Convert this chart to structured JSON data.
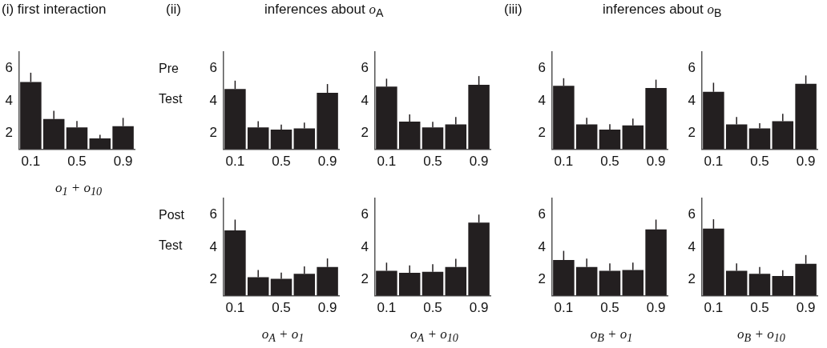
{
  "chart_data": [
    {
      "type": "bar",
      "title": "(i) first interaction",
      "xlabel": "o$_{1}$ + o$_{10}$",
      "categories": [
        "0.1",
        null,
        "0.5",
        null,
        "0.9"
      ],
      "values": [
        5.16,
        2.87,
        2.35,
        1.67,
        2.43
      ],
      "errors": [
        [
          5.16,
          5.73
        ],
        [
          2.87,
          3.38
        ],
        [
          2.35,
          2.75
        ],
        [
          1.67,
          1.9
        ],
        [
          2.43,
          2.94
        ]
      ],
      "color": "#231f20",
      "ylim": [
        1,
        7
      ],
      "yticks": [
        2,
        4,
        6
      ]
    },
    {
      "type": "bar",
      "title": "(ii)",
      "subtitle": "inferences about o$_{A}$",
      "ylabel": "Pre Test",
      "categories": [
        "0.1",
        null,
        "0.5",
        null,
        "0.9"
      ],
      "values": [
        4.73,
        2.35,
        2.22,
        2.29,
        4.49
      ],
      "errors": [
        [
          4.73,
          5.24
        ],
        [
          2.35,
          2.73
        ],
        [
          2.22,
          2.52
        ],
        [
          2.29,
          2.65
        ],
        [
          4.49,
          5.03
        ]
      ],
      "color": "#231f20",
      "ylim": [
        1,
        7
      ],
      "yticks": [
        2,
        4,
        6
      ]
    },
    {
      "type": "bar",
      "categories": [
        "0.1",
        null,
        "0.5",
        null,
        "0.9"
      ],
      "values": [
        4.87,
        2.71,
        2.35,
        2.54,
        4.98
      ],
      "errors": [
        [
          4.87,
          5.36
        ],
        [
          2.71,
          3.16
        ],
        [
          2.35,
          2.7
        ],
        [
          2.54,
          2.99
        ],
        [
          4.98,
          5.52
        ]
      ],
      "color": "#231f20",
      "ylim": [
        1,
        7
      ],
      "yticks": [
        2,
        4,
        6
      ]
    },
    {
      "type": "bar",
      "title": "(iii)",
      "subtitle": "inferences about o$_{B}$",
      "categories": [
        "0.1",
        null,
        "0.5",
        null,
        "0.9"
      ],
      "values": [
        4.92,
        2.54,
        2.22,
        2.48,
        4.79
      ],
      "errors": [
        [
          4.92,
          5.39
        ],
        [
          2.54,
          2.95
        ],
        [
          2.22,
          2.55
        ],
        [
          2.48,
          2.89
        ],
        [
          4.79,
          5.3
        ]
      ],
      "color": "#231f20",
      "ylim": [
        1,
        7
      ],
      "yticks": [
        2,
        4,
        6
      ]
    },
    {
      "type": "bar",
      "categories": [
        "0.1",
        null,
        "0.5",
        null,
        "0.9"
      ],
      "values": [
        4.55,
        2.54,
        2.29,
        2.73,
        5.04
      ],
      "errors": [
        [
          4.55,
          5.11
        ],
        [
          2.54,
          2.99
        ],
        [
          2.29,
          2.61
        ],
        [
          2.73,
          3.19
        ],
        [
          5.04,
          5.56
        ]
      ],
      "color": "#231f20",
      "ylim": [
        1,
        7
      ],
      "yticks": [
        2,
        4,
        6
      ]
    },
    {
      "type": "bar",
      "ylabel": "Post Test",
      "xlabel": "o$_{A}$ + o$_{1}$",
      "categories": [
        "0.1",
        null,
        "0.5",
        null,
        "0.9"
      ],
      "values": [
        5.03,
        2.14,
        2.04,
        2.35,
        2.77
      ],
      "errors": [
        [
          5.03,
          5.7
        ],
        [
          2.14,
          2.59
        ],
        [
          2.04,
          2.42
        ],
        [
          2.35,
          2.81
        ],
        [
          2.77,
          3.3
        ]
      ],
      "color": "#231f20",
      "ylim": [
        1,
        7
      ],
      "yticks": [
        2,
        4,
        6
      ]
    },
    {
      "type": "bar",
      "xlabel": "o$_{A}$ + o$_{10}$",
      "categories": [
        "0.1",
        null,
        "0.5",
        null,
        "0.9"
      ],
      "values": [
        2.54,
        2.41,
        2.48,
        2.77,
        5.52
      ],
      "errors": [
        [
          2.54,
          3.04
        ],
        [
          2.41,
          2.87
        ],
        [
          2.48,
          2.94
        ],
        [
          2.77,
          3.28
        ],
        [
          5.52,
          6.01
        ]
      ],
      "color": "#231f20",
      "ylim": [
        1,
        7
      ],
      "yticks": [
        2,
        4,
        6
      ]
    },
    {
      "type": "bar",
      "xlabel": "o$_{B}$ + o$_{1}$",
      "categories": [
        "0.1",
        null,
        "0.5",
        null,
        "0.9"
      ],
      "values": [
        3.2,
        2.77,
        2.54,
        2.59,
        5.09
      ],
      "errors": [
        [
          3.2,
          3.77
        ],
        [
          2.77,
          3.29
        ],
        [
          2.54,
          2.99
        ],
        [
          2.59,
          3.04
        ],
        [
          5.09,
          5.7
        ]
      ],
      "color": "#231f20",
      "ylim": [
        1,
        7
      ],
      "yticks": [
        2,
        4,
        6
      ]
    },
    {
      "type": "bar",
      "xlabel": "o$_{B}$ + o$_{10}$",
      "categories": [
        "0.1",
        null,
        "0.5",
        null,
        "0.9"
      ],
      "values": [
        5.14,
        2.54,
        2.35,
        2.22,
        2.97
      ],
      "errors": [
        [
          5.14,
          5.72
        ],
        [
          2.54,
          2.99
        ],
        [
          2.35,
          2.77
        ],
        [
          2.22,
          2.58
        ],
        [
          2.97,
          3.51
        ]
      ],
      "color": "#231f20",
      "ylim": [
        1,
        7
      ],
      "yticks": [
        2,
        4,
        6
      ]
    }
  ]
}
